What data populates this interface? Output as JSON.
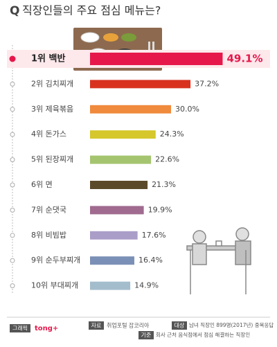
{
  "chart_data": {
    "type": "bar",
    "title_prefix": "Q",
    "title": "직장인들의 주요 점심 메뉴는?",
    "categories": [
      "1위 백반",
      "2위 김치찌개",
      "3위 제육볶음",
      "4위 돈가스",
      "5위 된장찌개",
      "6위 면",
      "7위 순댓국",
      "8위 비빔밥",
      "9위 순두부찌개",
      "10위 부대찌개"
    ],
    "values": [
      49.1,
      37.2,
      30.0,
      24.3,
      22.6,
      21.3,
      19.9,
      17.6,
      16.4,
      14.9
    ],
    "value_labels": [
      "49.1%",
      "37.2%",
      "30.0%",
      "24.3%",
      "22.6%",
      "21.3%",
      "19.9%",
      "17.6%",
      "16.4%",
      "14.9%"
    ],
    "colors": [
      "#e6184b",
      "#d8321f",
      "#f08a3c",
      "#d5c72c",
      "#a5c46f",
      "#5b4a2a",
      "#a06b8f",
      "#aa9dc8",
      "#7b90b6",
      "#a4bdcc"
    ],
    "footer": {
      "graphic_label": "그래픽",
      "graphic": "tong+",
      "source_label": "자료",
      "source": "취업포털 잡코리아",
      "target_label": "대상",
      "target": "남녀 직장인 899명(2017년) 중복응답",
      "criteria_label": "기준",
      "criteria": "회사 근처 음식점에서 점심 해결하는 직장인"
    }
  }
}
